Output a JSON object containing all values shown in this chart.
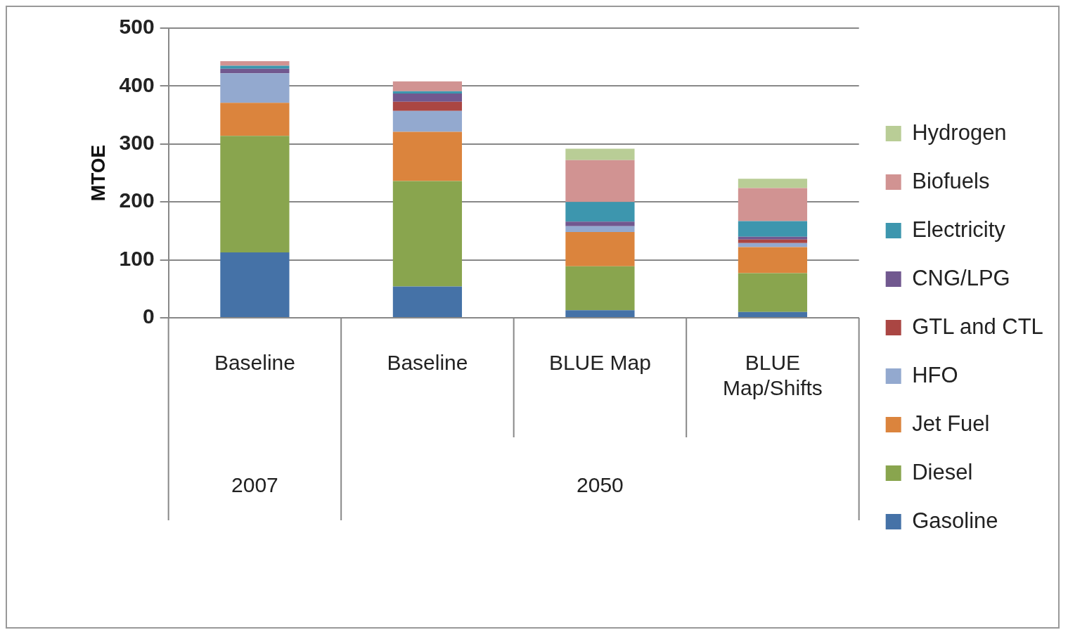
{
  "chart_data": {
    "type": "bar",
    "stacked": true,
    "ylabel": "MTOE",
    "categories": [
      "Baseline",
      "Baseline",
      "BLUE Map",
      "BLUE Map/Shifts"
    ],
    "annotations": [
      "2007",
      "2050"
    ],
    "series": [
      {
        "name": "Gasoline",
        "color": "#4572a7",
        "values": [
          113,
          54,
          13,
          10
        ]
      },
      {
        "name": "Diesel",
        "color": "#89a54e",
        "values": [
          201,
          182,
          76,
          67
        ]
      },
      {
        "name": "Jet Fuel",
        "color": "#db843d",
        "values": [
          57,
          85,
          59,
          45
        ]
      },
      {
        "name": "HFO",
        "color": "#93a9cf",
        "values": [
          51,
          36,
          10,
          7
        ]
      },
      {
        "name": "GTL and CTL",
        "color": "#aa4643",
        "values": [
          0,
          16,
          0,
          6
        ]
      },
      {
        "name": "CNG/LPG",
        "color": "#71588f",
        "values": [
          8,
          14,
          8,
          5
        ]
      },
      {
        "name": "Electricity",
        "color": "#3d96ae",
        "values": [
          5,
          4,
          34,
          27
        ]
      },
      {
        "name": "Biofuels",
        "color": "#d19392",
        "values": [
          8,
          17,
          72,
          57
        ]
      },
      {
        "name": "Hydrogen",
        "color": "#b9cd96",
        "values": [
          0,
          0,
          20,
          16
        ]
      }
    ],
    "ylim": [
      0,
      500
    ],
    "yticks": [
      0,
      100,
      200,
      300,
      400,
      500
    ],
    "grid": "y",
    "legend": "right"
  }
}
